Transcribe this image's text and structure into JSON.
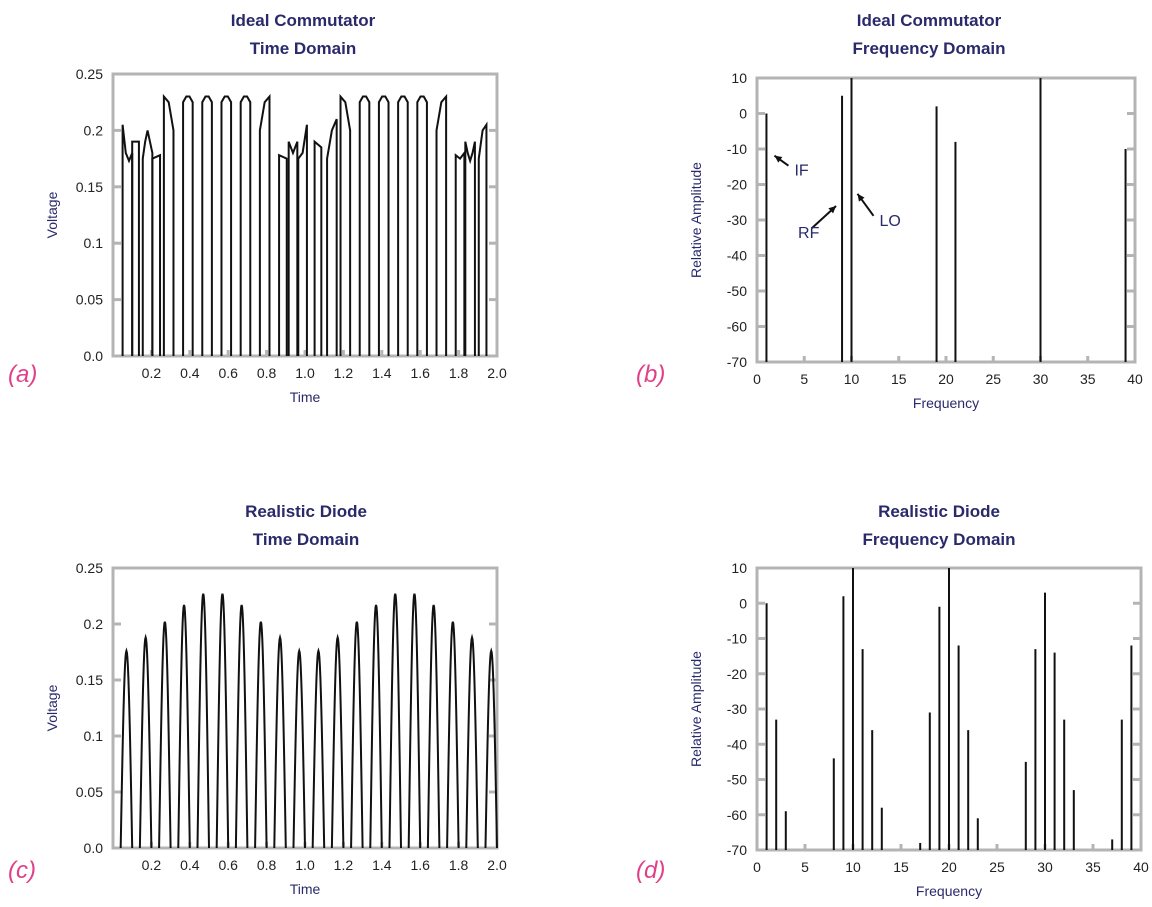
{
  "chart_data": [
    {
      "id": "a",
      "panel_label": "(a)",
      "type": "line",
      "title": [
        "Ideal Commutator",
        "Time Domain"
      ],
      "xlabel": "Time",
      "ylabel": "Voltage",
      "xlim": [
        0.0,
        2.0
      ],
      "ylim": [
        0.0,
        0.25
      ],
      "xticks": [
        0.2,
        0.4,
        0.6,
        0.8,
        1.0,
        1.2,
        1.4,
        1.6,
        1.8,
        2.0
      ],
      "xtick_labels": [
        "0.2",
        "0.4",
        "0.6",
        "0.8",
        "1.0",
        "1.2",
        "1.4",
        "1.6",
        "1.8",
        "2.0"
      ],
      "yticks": [
        0.0,
        0.05,
        0.1,
        0.15,
        0.2,
        0.25
      ],
      "ytick_labels": [
        "0.0",
        "0.05",
        "0.1",
        "0.15",
        "0.2",
        "0.25"
      ],
      "series": [
        {
          "description": "switched waveform; rectangular pulses whose tops follow envelope values",
          "pulses": [
            {
              "start": 0.05,
              "end": 0.1,
              "top": [
                0.205,
                0.18,
                0.173,
                0.18
              ]
            },
            {
              "start": 0.1,
              "end": 0.135,
              "top": [
                0.19
              ]
            },
            {
              "start": 0.155,
              "end": 0.205,
              "top": [
                0.175,
                0.19,
                0.2,
                0.19,
                0.18
              ]
            },
            {
              "start": 0.205,
              "end": 0.245,
              "top": [
                0.175,
                0.178
              ]
            },
            {
              "start": 0.265,
              "end": 0.315,
              "top": [
                0.23,
                0.225,
                0.2
              ]
            },
            {
              "start": 0.365,
              "end": 0.415,
              "top": [
                0.225,
                0.23,
                0.23,
                0.225
              ]
            },
            {
              "start": 0.465,
              "end": 0.515,
              "top": [
                0.225,
                0.23,
                0.23,
                0.225
              ]
            },
            {
              "start": 0.565,
              "end": 0.615,
              "top": [
                0.225,
                0.23,
                0.23,
                0.225
              ]
            },
            {
              "start": 0.665,
              "end": 0.715,
              "top": [
                0.225,
                0.23,
                0.23,
                0.225
              ]
            },
            {
              "start": 0.765,
              "end": 0.815,
              "top": [
                0.2,
                0.225,
                0.23
              ]
            },
            {
              "start": 0.865,
              "end": 0.905,
              "top": [
                0.178,
                0.175
              ]
            },
            {
              "start": 0.915,
              "end": 0.96,
              "top": [
                0.19,
                0.18,
                0.19
              ]
            },
            {
              "start": 0.965,
              "end": 1.01,
              "top": [
                0.175,
                0.18,
                0.205
              ]
            },
            {
              "start": 1.05,
              "end": 1.085,
              "top": [
                0.19,
                0.185
              ]
            },
            {
              "start": 1.115,
              "end": 1.165,
              "top": [
                0.175,
                0.2,
                0.21
              ]
            },
            {
              "start": 1.185,
              "end": 1.235,
              "top": [
                0.23,
                0.225,
                0.2
              ]
            },
            {
              "start": 1.285,
              "end": 1.335,
              "top": [
                0.225,
                0.23,
                0.23,
                0.225
              ]
            },
            {
              "start": 1.385,
              "end": 1.435,
              "top": [
                0.225,
                0.23,
                0.23,
                0.225
              ]
            },
            {
              "start": 1.485,
              "end": 1.535,
              "top": [
                0.225,
                0.23,
                0.23,
                0.225
              ]
            },
            {
              "start": 1.585,
              "end": 1.635,
              "top": [
                0.225,
                0.23,
                0.23,
                0.225
              ]
            },
            {
              "start": 1.685,
              "end": 1.735,
              "top": [
                0.2,
                0.225,
                0.23
              ]
            },
            {
              "start": 1.785,
              "end": 1.83,
              "top": [
                0.178,
                0.175,
                0.18
              ]
            },
            {
              "start": 1.835,
              "end": 1.885,
              "top": [
                0.19,
                0.18,
                0.173,
                0.18,
                0.19
              ]
            },
            {
              "start": 1.905,
              "end": 1.945,
              "top": [
                0.175,
                0.2,
                0.205
              ]
            }
          ]
        }
      ]
    },
    {
      "id": "b",
      "panel_label": "(b)",
      "type": "bar",
      "title": [
        "Ideal Commutator",
        "Frequency Domain"
      ],
      "xlabel": "Frequency",
      "ylabel": "Relative Amplitude",
      "xlim": [
        0,
        40
      ],
      "ylim": [
        -70,
        10
      ],
      "xticks": [
        0,
        5,
        10,
        15,
        20,
        25,
        30,
        35,
        40
      ],
      "xtick_labels": [
        "0",
        "5",
        "10",
        "15",
        "20",
        "25",
        "30",
        "35",
        "40"
      ],
      "yticks": [
        10,
        0,
        -10,
        -20,
        -30,
        -40,
        -50,
        -60,
        -70
      ],
      "ytick_labels": [
        "10",
        "0",
        "-10",
        "-20",
        "-30",
        "-40",
        "-50",
        "-60",
        "-70"
      ],
      "series": [
        {
          "x": [
            1,
            9,
            10,
            19,
            21,
            30,
            39
          ],
          "values": [
            0,
            5,
            10,
            2,
            -8,
            10,
            -10
          ]
        }
      ],
      "annotations": [
        {
          "text": "IF",
          "at": [
            1,
            -13
          ]
        },
        {
          "text": "RF",
          "at": [
            9,
            -30
          ]
        },
        {
          "text": "LO",
          "at": [
            10,
            -26
          ]
        }
      ]
    },
    {
      "id": "c",
      "panel_label": "(c)",
      "type": "line",
      "title": [
        "Realistic Diode",
        "Time Domain"
      ],
      "xlabel": "Time",
      "ylabel": "Voltage",
      "xlim": [
        0.0,
        2.0
      ],
      "ylim": [
        0.0,
        0.25
      ],
      "xticks": [
        0.2,
        0.4,
        0.6,
        0.8,
        1.0,
        1.2,
        1.4,
        1.6,
        1.8,
        2.0
      ],
      "xtick_labels": [
        "0.2",
        "0.4",
        "0.6",
        "0.8",
        "1.0",
        "1.2",
        "1.4",
        "1.6",
        "1.8",
        "2.0"
      ],
      "yticks": [
        0.0,
        0.05,
        0.1,
        0.15,
        0.2,
        0.25
      ],
      "ytick_labels": [
        "0.0",
        "0.05",
        "0.1",
        "0.15",
        "0.2",
        "0.25"
      ],
      "series": [
        {
          "description": "half-sine diode current pulses",
          "pulses": [
            {
              "center": 0.07,
              "peak": 0.176
            },
            {
              "center": 0.17,
              "peak": 0.188
            },
            {
              "center": 0.27,
              "peak": 0.202
            },
            {
              "center": 0.37,
              "peak": 0.217
            },
            {
              "center": 0.47,
              "peak": 0.227
            },
            {
              "center": 0.57,
              "peak": 0.227
            },
            {
              "center": 0.67,
              "peak": 0.217
            },
            {
              "center": 0.77,
              "peak": 0.202
            },
            {
              "center": 0.87,
              "peak": 0.188
            },
            {
              "center": 0.97,
              "peak": 0.176
            },
            {
              "center": 1.07,
              "peak": 0.176
            },
            {
              "center": 1.17,
              "peak": 0.188
            },
            {
              "center": 1.27,
              "peak": 0.202
            },
            {
              "center": 1.37,
              "peak": 0.217
            },
            {
              "center": 1.47,
              "peak": 0.227
            },
            {
              "center": 1.57,
              "peak": 0.227
            },
            {
              "center": 1.67,
              "peak": 0.217
            },
            {
              "center": 1.77,
              "peak": 0.202
            },
            {
              "center": 1.87,
              "peak": 0.188
            },
            {
              "center": 1.97,
              "peak": 0.176
            }
          ]
        }
      ]
    },
    {
      "id": "d",
      "panel_label": "(d)",
      "type": "bar",
      "title": [
        "Realistic Diode",
        "Frequency Domain"
      ],
      "xlabel": "Frequency",
      "ylabel": "Relative Amplitude",
      "xlim": [
        0,
        40
      ],
      "ylim": [
        -70,
        10
      ],
      "xticks": [
        0,
        5,
        10,
        15,
        20,
        25,
        30,
        35,
        40
      ],
      "xtick_labels": [
        "0",
        "5",
        "10",
        "15",
        "20",
        "25",
        "30",
        "35",
        "40"
      ],
      "yticks": [
        10,
        0,
        -10,
        -20,
        -30,
        -40,
        -50,
        -60,
        -70
      ],
      "ytick_labels": [
        "10",
        "0",
        "-10",
        "-20",
        "-30",
        "-40",
        "-50",
        "-60",
        "-70"
      ],
      "series": [
        {
          "x": [
            1,
            2,
            3,
            8,
            9,
            10,
            11,
            12,
            13,
            17,
            18,
            19,
            20,
            21,
            22,
            23,
            28,
            29,
            30,
            31,
            32,
            33,
            37,
            38,
            39
          ],
          "values": [
            0,
            -33,
            -59,
            -44,
            2,
            10,
            -13,
            -36,
            -58,
            -68,
            -31,
            -1,
            10,
            -12,
            -36,
            -61,
            -45,
            -13,
            3,
            -14,
            -33,
            -53,
            -67,
            -33,
            -12
          ]
        }
      ]
    }
  ]
}
